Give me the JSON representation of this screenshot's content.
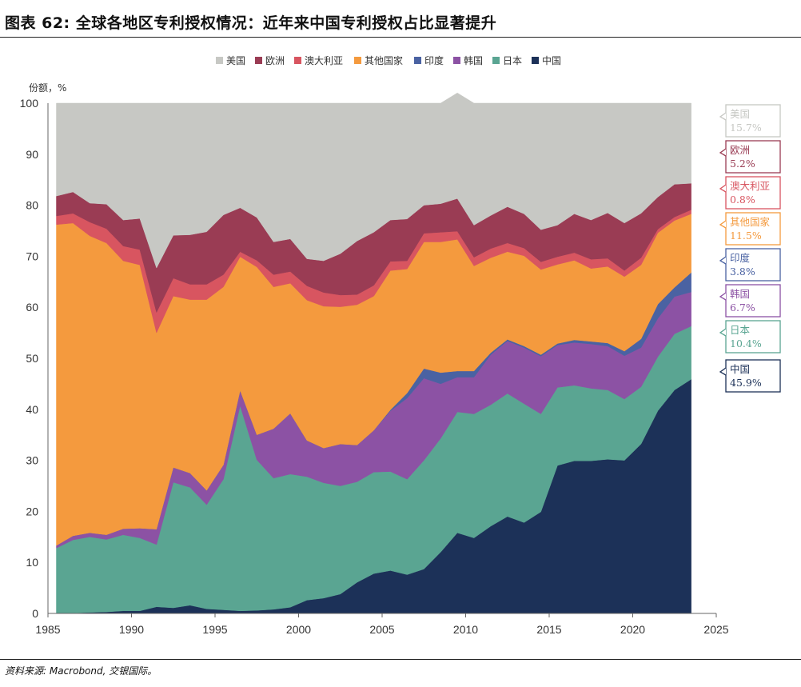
{
  "header": {
    "title": "图表 62: 全球各地区专利授权情况：近年来中国专利授权占比显著提升"
  },
  "source": "资料来源: Macrobond, 交银国际。",
  "chart_data": {
    "type": "area",
    "stacked": true,
    "ylabel": "份额，%",
    "ylim": [
      0,
      100
    ],
    "xlim": [
      1985,
      2025
    ],
    "xticks": [
      1985,
      1990,
      1995,
      2000,
      2005,
      2010,
      2015,
      2020,
      2025
    ],
    "yticks": [
      0,
      10,
      20,
      30,
      40,
      50,
      60,
      70,
      80,
      90,
      100
    ],
    "legend_position": "top",
    "x": [
      1985.5,
      1986.5,
      1987.5,
      1988.5,
      1989.5,
      1990.5,
      1991.5,
      1992.5,
      1993.5,
      1994.5,
      1995.5,
      1996.5,
      1997.5,
      1998.5,
      1999.5,
      2000.5,
      2001.5,
      2002.5,
      2003.5,
      2004.5,
      2005.5,
      2006.5,
      2007.5,
      2008.5,
      2009.5,
      2010.5,
      2011.5,
      2012.5,
      2013.5,
      2014.5,
      2015.5,
      2016.5,
      2017.5,
      2018.5,
      2019.5,
      2020.5,
      2021.5,
      2022.5,
      2023.5
    ],
    "series": [
      {
        "name": "中国",
        "color": "#1c3158",
        "values": [
          0.1,
          0.1,
          0.2,
          0.3,
          0.5,
          0.5,
          1.3,
          1.1,
          1.6,
          0.9,
          0.7,
          0.5,
          0.6,
          0.8,
          1.2,
          2.6,
          3.0,
          3.8,
          6.1,
          7.8,
          8.4,
          7.6,
          8.7,
          12.0,
          15.8,
          14.8,
          17.1,
          19.0,
          17.8,
          19.9,
          29.0,
          29.9,
          29.9,
          30.2,
          30.0,
          33.2,
          39.7,
          43.8,
          45.9
        ]
      },
      {
        "name": "日本",
        "color": "#5aa592",
        "values": [
          12.7,
          14.3,
          14.8,
          14.2,
          14.9,
          14.3,
          12.2,
          24.6,
          23.1,
          20.4,
          25.6,
          40.2,
          29.5,
          25.7,
          26.1,
          24.2,
          22.6,
          21.2,
          19.7,
          19.9,
          19.4,
          18.7,
          21.3,
          22.3,
          23.7,
          24.3,
          23.8,
          24.1,
          23.3,
          19.2,
          15.3,
          14.8,
          14.2,
          13.6,
          12.0,
          11.2,
          10.6,
          11.0,
          10.4
        ]
      },
      {
        "name": "韩国",
        "color": "#8c52a4",
        "values": [
          0.5,
          0.8,
          0.8,
          0.9,
          1.2,
          1.9,
          3.0,
          2.9,
          2.8,
          2.8,
          2.8,
          3.0,
          4.9,
          9.7,
          11.9,
          7.1,
          6.8,
          8.2,
          7.2,
          8.2,
          11.9,
          15.9,
          16.1,
          10.7,
          6.8,
          7.2,
          9.8,
          10.3,
          11.0,
          11.3,
          8.3,
          8.4,
          8.7,
          8.6,
          8.5,
          7.7,
          7.5,
          7.3,
          6.7
        ]
      },
      {
        "name": "印度",
        "color": "#4a62a2",
        "values": [
          0,
          0,
          0,
          0,
          0,
          0,
          0,
          0,
          0,
          0,
          0,
          0,
          0,
          0,
          0,
          0,
          0,
          0,
          0,
          0,
          0.2,
          1.0,
          1.9,
          2.2,
          1.2,
          1.2,
          0.4,
          0.3,
          0.3,
          0.3,
          0.3,
          0.5,
          0.5,
          0.6,
          0.9,
          1.7,
          2.8,
          1.8,
          3.8
        ]
      },
      {
        "name": "其他国家",
        "color": "#f49a3e",
        "values": [
          62.9,
          61.3,
          58.2,
          57.2,
          52.5,
          51.6,
          38.5,
          33.6,
          34.0,
          37.4,
          34.9,
          26.2,
          32.9,
          27.8,
          25.5,
          27.5,
          27.8,
          26.9,
          27.5,
          26.3,
          27.3,
          24.3,
          24.8,
          25.6,
          25.8,
          20.6,
          18.6,
          17.2,
          17.7,
          16.7,
          15.5,
          15.6,
          14.3,
          15.0,
          14.6,
          14.5,
          14.0,
          13.1,
          11.5
        ]
      },
      {
        "name": "澳大利亚",
        "color": "#d85560",
        "values": [
          1.7,
          1.9,
          2.7,
          2.8,
          2.9,
          3.0,
          4.0,
          3.5,
          3.0,
          3.0,
          2.4,
          1.0,
          1.3,
          2.4,
          2.3,
          2.8,
          2.7,
          2.3,
          2.0,
          2.1,
          1.8,
          1.6,
          1.7,
          1.9,
          1.6,
          1.7,
          1.8,
          1.7,
          1.5,
          1.5,
          1.5,
          1.5,
          1.8,
          1.6,
          1.2,
          1.4,
          0.7,
          0.7,
          0.8
        ]
      },
      {
        "name": "欧洲",
        "color": "#9a3c54",
        "values": [
          3.9,
          4.2,
          3.7,
          4.8,
          5.1,
          6.1,
          8.7,
          8.4,
          9.7,
          10.3,
          11.7,
          8.6,
          8.4,
          6.4,
          6.4,
          5.3,
          6.2,
          8.1,
          10.5,
          10.4,
          8.1,
          8.2,
          5.5,
          5.6,
          6.4,
          6.3,
          6.5,
          7.1,
          6.7,
          6.3,
          6.2,
          7.6,
          7.7,
          8.9,
          9.3,
          8.7,
          6.3,
          6.4,
          5.2
        ]
      },
      {
        "name": "美国",
        "color": "#c7c8c4",
        "values": [
          18.2,
          17.4,
          19.6,
          19.8,
          22.9,
          22.6,
          32.3,
          25.9,
          25.8,
          25.2,
          21.9,
          20.5,
          22.4,
          27.2,
          26.6,
          30.5,
          30.9,
          29.5,
          27.0,
          25.3,
          22.9,
          22.7,
          20.0,
          19.7,
          20.7,
          23.9,
          22.0,
          20.3,
          21.7,
          24.8,
          23.9,
          21.7,
          22.9,
          21.5,
          23.5,
          21.6,
          18.4,
          15.9,
          15.7
        ]
      }
    ],
    "callouts": [
      {
        "name": "美国",
        "value": "15.7%"
      },
      {
        "name": "欧洲",
        "value": "5.2%"
      },
      {
        "name": "澳大利亚",
        "value": "0.8%"
      },
      {
        "name": "其他国家",
        "value": "11.5%"
      },
      {
        "name": "印度",
        "value": "3.8%"
      },
      {
        "name": "韩国",
        "value": "6.7%"
      },
      {
        "name": "日本",
        "value": "10.4%"
      },
      {
        "name": "中国",
        "value": "45.9%"
      }
    ]
  }
}
